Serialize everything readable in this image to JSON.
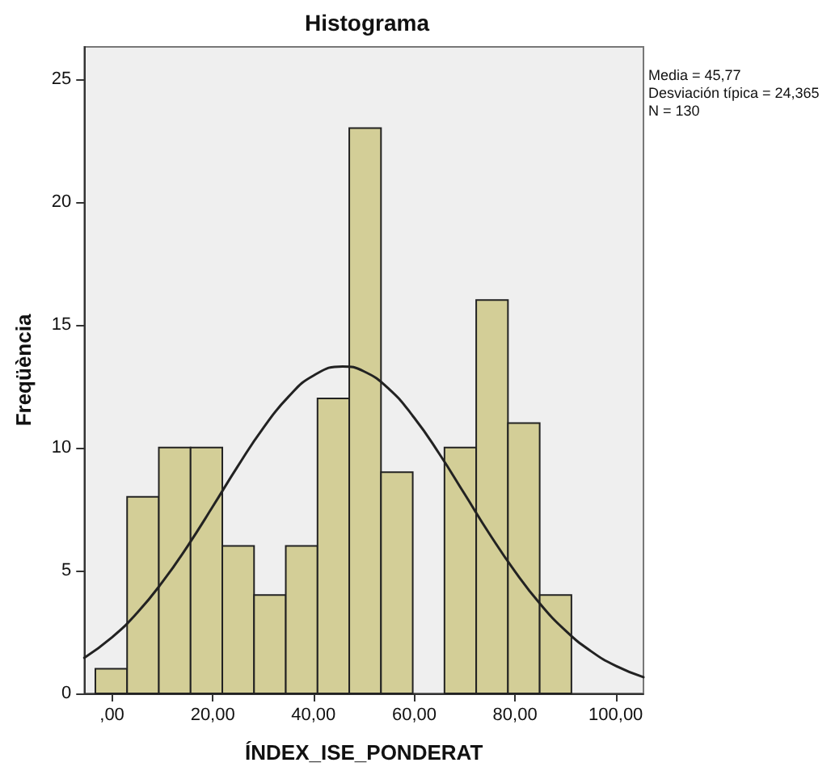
{
  "chart_data": {
    "type": "histogram",
    "title": "Histograma",
    "xlabel": "ÍNDEX_ISE_PONDERAT",
    "ylabel": "Freqüència",
    "annotations": [
      "Media = 45,77",
      "Desviación típica = 24,365",
      "N = 130"
    ],
    "bins": [
      -3.3,
      3.0,
      9.3,
      15.6,
      21.9,
      28.2,
      34.5,
      40.8,
      47.1,
      53.4,
      59.7,
      66.0,
      72.3,
      78.6,
      84.9,
      91.2
    ],
    "values": [
      1,
      8,
      10,
      10,
      6,
      4,
      6,
      12,
      23,
      9,
      0,
      10,
      16,
      11,
      4
    ],
    "color": "#d3ce97",
    "series": [
      {
        "type": "line",
        "color": "#222222",
        "marker": "none",
        "line_style": "solid",
        "x": [
          -5.5,
          0,
          5,
          10,
          15,
          20,
          25,
          30,
          35,
          40,
          45.77,
          50,
          55,
          60,
          65,
          70,
          75,
          80,
          85,
          90,
          95,
          100,
          105.5
        ],
        "values": [
          1.45,
          2.28,
          3.28,
          4.53,
          5.99,
          7.6,
          9.25,
          10.79,
          12.06,
          12.93,
          13.3,
          13.1,
          12.38,
          11.21,
          9.74,
          8.11,
          6.47,
          4.96,
          3.64,
          2.56,
          1.73,
          1.12,
          0.66
        ]
      }
    ],
    "xlim": [
      -5.5,
      105.5
    ],
    "ylim": [
      0,
      26.3
    ],
    "xticks": [
      {
        "value": 0,
        "label": ",00"
      },
      {
        "value": 20,
        "label": "20,00"
      },
      {
        "value": 40,
        "label": "40,00"
      },
      {
        "value": 60,
        "label": "60,00"
      },
      {
        "value": 80,
        "label": "80,00"
      },
      {
        "value": 100,
        "label": "100,00"
      }
    ],
    "yticks": [
      0,
      5,
      10,
      15,
      20,
      25
    ],
    "grid": false
  }
}
